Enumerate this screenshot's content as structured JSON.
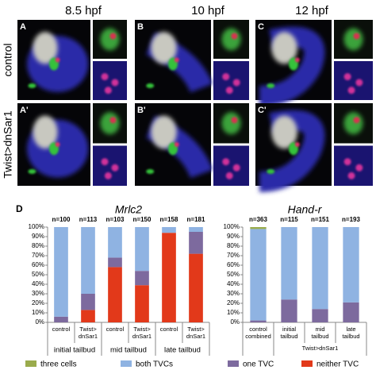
{
  "figure": {
    "columns": [
      "8.5 hpf",
      "10 hpf",
      "12 hpf"
    ],
    "rows": [
      "control",
      "Twist>dnSar1"
    ],
    "panels": [
      "A",
      "B",
      "C",
      "A'",
      "B'",
      "C'"
    ],
    "chart_panel_label": "D"
  },
  "chart_data": [
    {
      "type": "stacked-bar",
      "title": "Mrlc2",
      "annotations": [
        "n=100",
        "n=113",
        "n=103",
        "n=150",
        "n=158",
        "n=181"
      ],
      "categories": [
        [
          "control"
        ],
        [
          "Twist>",
          "dnSar1"
        ],
        [
          "control"
        ],
        [
          "Twist>",
          "dnSar1"
        ],
        [
          "control"
        ],
        [
          "Twist>",
          "dnSar1"
        ]
      ],
      "groups": [
        "initial tailbud",
        "mid tailbud",
        "late tailbud"
      ],
      "series": [
        {
          "name": "neither TVC",
          "color": "#e2391a",
          "values": [
            0,
            13,
            58,
            39,
            94,
            72
          ]
        },
        {
          "name": "one TVC",
          "color": "#7d6a9e",
          "values": [
            6,
            17,
            10,
            15,
            0,
            23
          ]
        },
        {
          "name": "both TVCs",
          "color": "#8fb3e2",
          "values": [
            94,
            70,
            32,
            46,
            6,
            5
          ]
        },
        {
          "name": "three cells",
          "color": "#9aab4c",
          "values": [
            0,
            0,
            0,
            0,
            0,
            0
          ]
        }
      ],
      "ylim": [
        0,
        100
      ],
      "yticks": [
        {
          "value": 0,
          "label": "0%"
        },
        {
          "value": 10,
          "label": "10%"
        },
        {
          "value": 20,
          "label": "20%"
        },
        {
          "value": 30,
          "label": "30%"
        },
        {
          "value": 40,
          "label": "40%"
        },
        {
          "value": 50,
          "label": "50%"
        },
        {
          "value": 60,
          "label": "60%"
        },
        {
          "value": 70,
          "label": "70%"
        },
        {
          "value": 80,
          "label": "80%"
        },
        {
          "value": 90,
          "label": "90%"
        },
        {
          "value": 100,
          "label": "100%"
        }
      ]
    },
    {
      "type": "stacked-bar",
      "title": "Hand-r",
      "annotations": [
        "n=363",
        "n=115",
        "n=151",
        "n=193"
      ],
      "categories": [
        [
          "control",
          "combined"
        ],
        [
          "initial",
          "tailbud"
        ],
        [
          "mid",
          "tailbud"
        ],
        [
          "late",
          "tailbud"
        ]
      ],
      "group_label": "Twist>dnSar1",
      "series": [
        {
          "color": "#e2391a",
          "values": [
            0,
            0,
            0,
            0
          ]
        },
        {
          "color": "#7d6a9e",
          "values": [
            2,
            24,
            14,
            21
          ]
        },
        {
          "color": "#8fb3e2",
          "values": [
            96,
            76,
            86,
            79
          ]
        },
        {
          "color": "#9aab4c",
          "values": [
            2,
            0,
            0,
            0
          ]
        }
      ],
      "ylim": [
        0,
        100
      ],
      "yticks": [
        {
          "value": 0,
          "label": "0%"
        },
        {
          "value": 10,
          "label": "10%"
        },
        {
          "value": 20,
          "label": "20%"
        },
        {
          "value": 30,
          "label": "30%"
        },
        {
          "value": 40,
          "label": "40%"
        },
        {
          "value": 50,
          "label": "50%"
        },
        {
          "value": 60,
          "label": "60%"
        },
        {
          "value": 70,
          "label": "70%"
        },
        {
          "value": 80,
          "label": "80%"
        },
        {
          "value": 90,
          "label": "90%"
        },
        {
          "value": 100,
          "label": "100%"
        }
      ]
    }
  ]
}
